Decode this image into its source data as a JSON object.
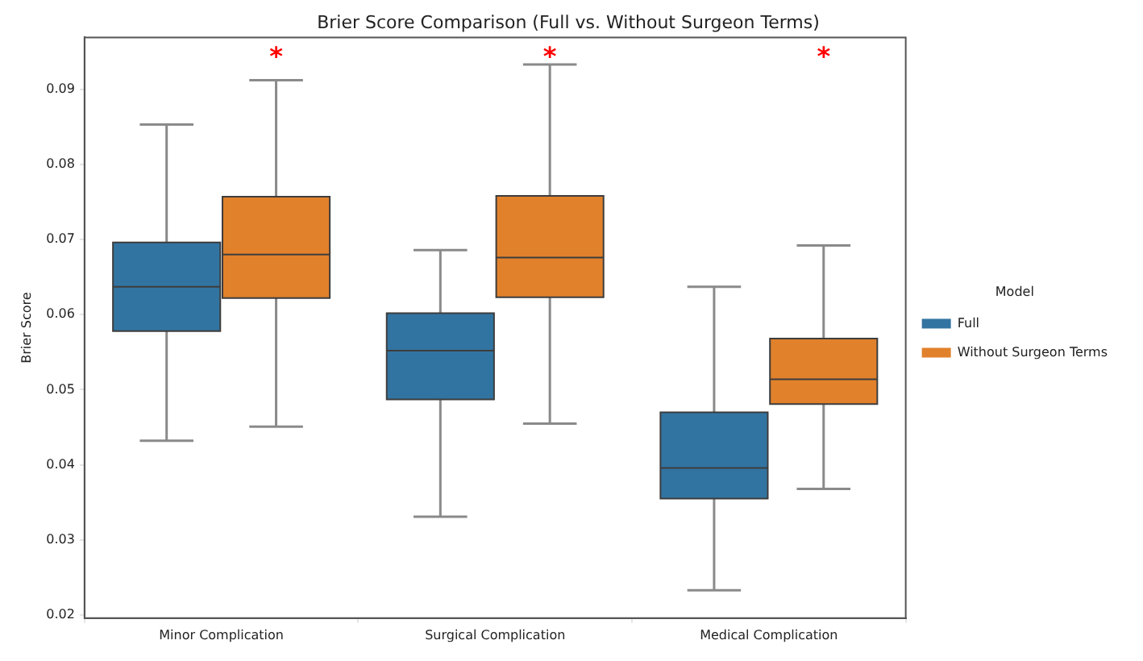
{
  "chart_data": {
    "type": "box",
    "title": "Brier Score Comparison (Full vs. Without Surgeon Terms)",
    "ylabel": "Brier Score",
    "legend_title": "Model",
    "legend": "right",
    "categories": [
      "Minor Complication",
      "Surgical Complication",
      "Medical Complication"
    ],
    "series": [
      {
        "name": "Full",
        "color": "#3274a1",
        "boxes": [
          {
            "low": 0.0432,
            "q1": 0.0578,
            "median": 0.0637,
            "q3": 0.0696,
            "high": 0.0853
          },
          {
            "low": 0.0331,
            "q1": 0.0487,
            "median": 0.0552,
            "q3": 0.0602,
            "high": 0.0686
          },
          {
            "low": 0.0233,
            "q1": 0.0355,
            "median": 0.0396,
            "q3": 0.047,
            "high": 0.0637
          }
        ]
      },
      {
        "name": "Without Surgeon Terms",
        "color": "#e1812c",
        "boxes": [
          {
            "low": 0.0451,
            "q1": 0.0622,
            "median": 0.068,
            "q3": 0.0757,
            "high": 0.0912
          },
          {
            "low": 0.0455,
            "q1": 0.0623,
            "median": 0.0676,
            "q3": 0.0758,
            "high": 0.0933
          },
          {
            "low": 0.0368,
            "q1": 0.0481,
            "median": 0.0514,
            "q3": 0.0568,
            "high": 0.0692
          }
        ]
      }
    ],
    "annotations": [
      "*",
      "*",
      "*"
    ],
    "ylim": [
      0.0196,
      0.0969
    ],
    "yticks": [
      0.02,
      0.03,
      0.04,
      0.05,
      0.06,
      0.07,
      0.08,
      0.09
    ]
  }
}
